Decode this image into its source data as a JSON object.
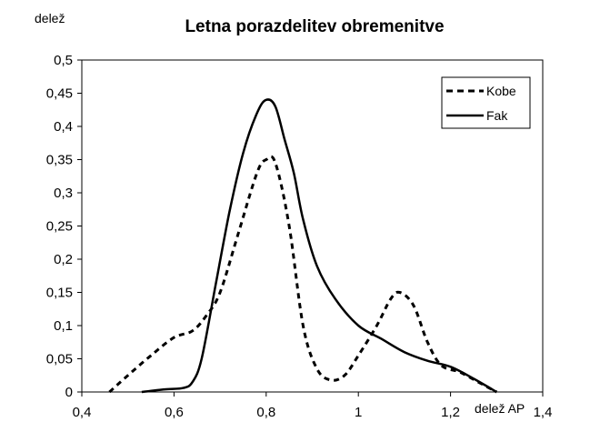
{
  "chart_data": {
    "type": "line",
    "title": "Letna porazdelitev obremenitve",
    "ylabel": "delež",
    "xlabel": "delež AP",
    "xlim": [
      0.4,
      1.4
    ],
    "ylim": [
      0,
      0.5
    ],
    "x_ticks": [
      0.4,
      0.6,
      0.8,
      1,
      1.2,
      1.4
    ],
    "x_tick_labels": [
      "0,4",
      "0,6",
      "0,8",
      "1",
      "1,2",
      "1,4"
    ],
    "y_ticks": [
      0,
      0.05,
      0.1,
      0.15,
      0.2,
      0.25,
      0.3,
      0.35,
      0.4,
      0.45,
      0.5
    ],
    "y_tick_labels": [
      "0",
      "0,05",
      "0,1",
      "0,15",
      "0,2",
      "0,25",
      "0,3",
      "0,35",
      "0,4",
      "0,45",
      "0,5"
    ],
    "grid": false,
    "legend_position": "top-right",
    "series": [
      {
        "name": "Kobe",
        "style": "dashed",
        "color": "#000000",
        "points": [
          [
            0.46,
            0
          ],
          [
            0.5,
            0.025
          ],
          [
            0.55,
            0.055
          ],
          [
            0.6,
            0.082
          ],
          [
            0.64,
            0.092
          ],
          [
            0.67,
            0.115
          ],
          [
            0.7,
            0.15
          ],
          [
            0.74,
            0.24
          ],
          [
            0.78,
            0.33
          ],
          [
            0.8,
            0.35
          ],
          [
            0.82,
            0.345
          ],
          [
            0.85,
            0.25
          ],
          [
            0.88,
            0.1
          ],
          [
            0.91,
            0.035
          ],
          [
            0.94,
            0.018
          ],
          [
            0.97,
            0.025
          ],
          [
            1.0,
            0.055
          ],
          [
            1.04,
            0.1
          ],
          [
            1.07,
            0.14
          ],
          [
            1.09,
            0.15
          ],
          [
            1.12,
            0.13
          ],
          [
            1.15,
            0.075
          ],
          [
            1.18,
            0.04
          ],
          [
            1.22,
            0.03
          ],
          [
            1.26,
            0.015
          ],
          [
            1.3,
            0
          ]
        ]
      },
      {
        "name": "Fak",
        "style": "solid",
        "color": "#000000",
        "points": [
          [
            0.53,
            0
          ],
          [
            0.58,
            0.004
          ],
          [
            0.62,
            0.006
          ],
          [
            0.64,
            0.015
          ],
          [
            0.66,
            0.05
          ],
          [
            0.69,
            0.16
          ],
          [
            0.72,
            0.27
          ],
          [
            0.75,
            0.36
          ],
          [
            0.78,
            0.42
          ],
          [
            0.8,
            0.44
          ],
          [
            0.82,
            0.43
          ],
          [
            0.84,
            0.38
          ],
          [
            0.86,
            0.33
          ],
          [
            0.88,
            0.26
          ],
          [
            0.91,
            0.19
          ],
          [
            0.95,
            0.14
          ],
          [
            1.0,
            0.1
          ],
          [
            1.05,
            0.08
          ],
          [
            1.1,
            0.06
          ],
          [
            1.15,
            0.047
          ],
          [
            1.2,
            0.038
          ],
          [
            1.25,
            0.02
          ],
          [
            1.3,
            0
          ]
        ]
      }
    ]
  }
}
